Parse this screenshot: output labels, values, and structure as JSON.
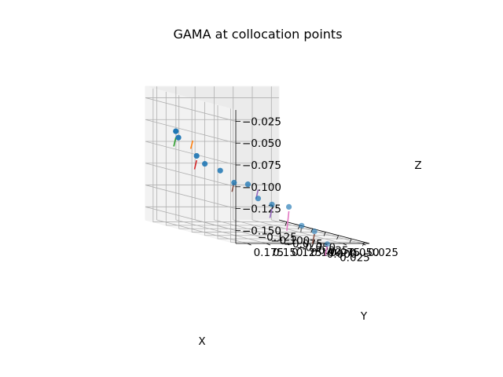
{
  "chart_data": {
    "type": "scatter",
    "title": "GAMA at collocation points",
    "xlabel": "X",
    "ylabel": "Y",
    "zlabel": "Z",
    "x_ticks": [
      -0.125,
      -0.1,
      -0.075,
      -0.05,
      -0.025,
      0.0,
      0.025
    ],
    "y_ticks": [
      0.025,
      0.05,
      0.075,
      0.1,
      0.125,
      0.15,
      0.175
    ],
    "z_ticks": [
      -0.15,
      -0.125,
      -0.1,
      -0.075,
      -0.05,
      -0.025
    ],
    "x_tick_labels": [
      "−0.125",
      "−0.100",
      "−0.075",
      "−0.050",
      "−0.025",
      "0.000",
      "0.025"
    ],
    "y_tick_labels": [
      "0.025",
      "0.050",
      "0.075",
      "0.100",
      "0.125",
      "0.150",
      "0.175"
    ],
    "z_tick_labels": [
      "−0.150",
      "−0.125",
      "−0.100",
      "−0.075",
      "−0.050",
      "−0.025"
    ],
    "xlim": [
      -0.14,
      0.035
    ],
    "ylim": [
      0.015,
      0.19
    ],
    "zlim": [
      -0.165,
      -0.012
    ],
    "grid": true,
    "marker_color": "#1f77b4",
    "points": [
      {
        "x": -0.118,
        "y": 0.165,
        "z": -0.06
      },
      {
        "x": -0.116,
        "y": 0.163,
        "z": -0.067
      },
      {
        "x": -0.097,
        "y": 0.152,
        "z": -0.085
      },
      {
        "x": -0.09,
        "y": 0.146,
        "z": -0.093
      },
      {
        "x": -0.072,
        "y": 0.138,
        "z": -0.098
      },
      {
        "x": -0.06,
        "y": 0.128,
        "z": -0.11
      },
      {
        "x": -0.048,
        "y": 0.118,
        "z": -0.11
      },
      {
        "x": -0.04,
        "y": 0.11,
        "z": -0.125
      },
      {
        "x": -0.028,
        "y": 0.1,
        "z": -0.13
      },
      {
        "x": -0.01,
        "y": 0.09,
        "z": -0.13
      },
      {
        "x": 0.0,
        "y": 0.08,
        "z": -0.15
      },
      {
        "x": 0.01,
        "y": 0.07,
        "z": -0.155
      },
      {
        "x": 0.02,
        "y": 0.06,
        "z": -0.168
      }
    ],
    "vectors": [
      {
        "start": {
          "x": -0.118,
          "y": 0.165,
          "z": -0.067
        },
        "end": {
          "x": -0.122,
          "y": 0.165,
          "z": -0.078
        },
        "color": "#2ca02c"
      },
      {
        "start": {
          "x": -0.1,
          "y": 0.155,
          "z": -0.068
        },
        "end": {
          "x": -0.104,
          "y": 0.155,
          "z": -0.078
        },
        "color": "#ff7f0e"
      },
      {
        "start": {
          "x": -0.097,
          "y": 0.152,
          "z": -0.09
        },
        "end": {
          "x": -0.101,
          "y": 0.152,
          "z": -0.101
        },
        "color": "#d62728"
      },
      {
        "start": {
          "x": -0.06,
          "y": 0.128,
          "z": -0.11
        },
        "end": {
          "x": -0.064,
          "y": 0.128,
          "z": -0.121
        },
        "color": "#8c564b"
      },
      {
        "start": {
          "x": -0.04,
          "y": 0.11,
          "z": -0.115
        },
        "end": {
          "x": -0.044,
          "y": 0.11,
          "z": -0.126
        },
        "color": "#9467bd"
      },
      {
        "start": {
          "x": -0.028,
          "y": 0.1,
          "z": -0.135
        },
        "end": {
          "x": -0.032,
          "y": 0.1,
          "z": -0.146
        },
        "color": "#9467bd"
      },
      {
        "start": {
          "x": -0.01,
          "y": 0.09,
          "z": -0.135
        },
        "end": {
          "x": -0.014,
          "y": 0.09,
          "z": -0.158
        },
        "color": "#e377c2"
      },
      {
        "start": {
          "x": 0.0,
          "y": 0.08,
          "z": -0.152
        },
        "end": {
          "x": -0.002,
          "y": 0.08,
          "z": -0.158
        },
        "color": "#7f7f7f"
      },
      {
        "start": {
          "x": 0.01,
          "y": 0.07,
          "z": -0.158
        },
        "end": {
          "x": 0.006,
          "y": 0.07,
          "z": -0.17
        },
        "color": "#8c564b"
      },
      {
        "start": {
          "x": 0.02,
          "y": 0.06,
          "z": -0.17
        },
        "end": {
          "x": 0.016,
          "y": 0.06,
          "z": -0.182
        },
        "color": "#e377c2"
      }
    ]
  }
}
